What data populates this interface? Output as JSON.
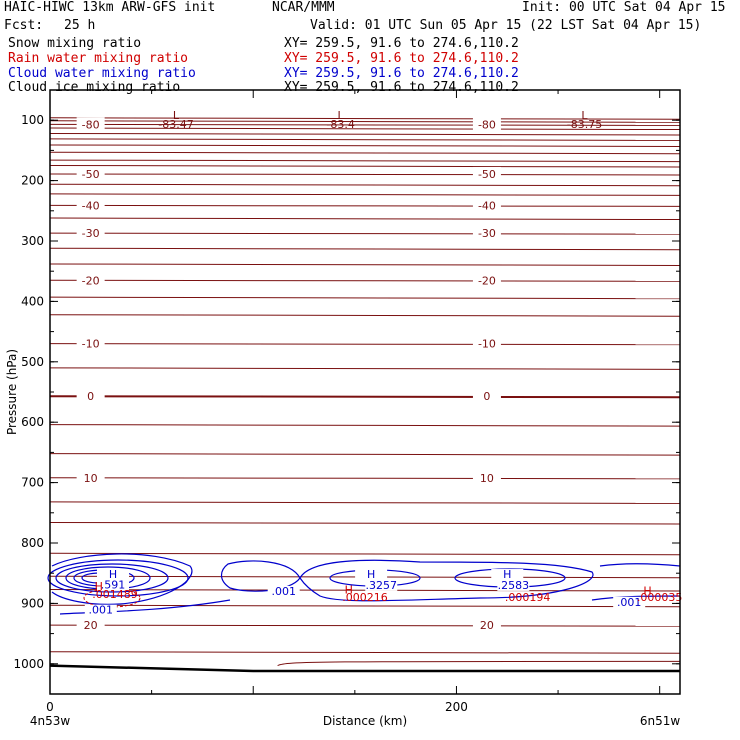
{
  "header": {
    "model": "HAIC-HIWC 13km ARW-GFS init",
    "org": "NCAR/MMM",
    "init": "Init: 00 UTC Sat 04 Apr 15",
    "fcst_label": "Fcst:",
    "fcst_value": "25 h",
    "valid": "Valid: 01 UTC Sun 05 Apr 15 (22 LST Sat 04 Apr 15)"
  },
  "fields": [
    {
      "name": "Snow mixing ratio",
      "xy": "XY= 259.5, 91.6 to 274.6,110.2",
      "color": "#000000"
    },
    {
      "name": "Rain water mixing ratio",
      "xy": "XY= 259.5, 91.6 to 274.6,110.2",
      "color": "#d00000"
    },
    {
      "name": "Cloud water mixing ratio",
      "xy": "XY= 259.5, 91.6 to 274.6,110.2",
      "color": "#0000cc"
    },
    {
      "name": "Cloud ice mixing ratio",
      "xy": "XY= 259.5, 91.6 to 274.6,110.2",
      "color": "#000000"
    }
  ],
  "chart_data": {
    "type": "contour",
    "ylabel": "Pressure (hPa)",
    "xlabel": "Distance (km)",
    "x_start_label": "4n53w",
    "x_end_label": "6n51w",
    "xlim": [
      0,
      310
    ],
    "ylim": [
      1050,
      50
    ],
    "y_ticks": [
      100,
      200,
      300,
      400,
      500,
      600,
      700,
      800,
      900,
      1000
    ],
    "x_ticks": [
      0,
      200
    ],
    "temperature_contours": [
      {
        "label": "-80",
        "pressure": 107
      },
      {
        "label": "-50",
        "pressure": 189
      },
      {
        "label": "-40",
        "pressure": 241
      },
      {
        "label": "-30",
        "pressure": 287
      },
      {
        "label": "-20",
        "pressure": 365
      },
      {
        "label": "-10",
        "pressure": 470
      },
      {
        "label": "0",
        "pressure": 557
      },
      {
        "label": "10",
        "pressure": 692
      },
      {
        "label": "20",
        "pressure": 936
      }
    ],
    "temperature_lows": [
      {
        "label": "L",
        "value": "-83.47",
        "x": 62
      },
      {
        "label": "L",
        "value": "-83.4",
        "x": 143
      },
      {
        "label": "L",
        "value": "-83.75",
        "x": 263
      }
    ],
    "cloud_water_labels": [
      {
        "text": "H",
        "x": 31,
        "pressure": 858
      },
      {
        "text": ".591",
        "x": 31,
        "pressure": 875
      },
      {
        "text": ".001",
        "x": 25,
        "pressure": 917
      },
      {
        "text": ".001",
        "x": 115,
        "pressure": 886
      },
      {
        "text": "H",
        "x": 158,
        "pressure": 858
      },
      {
        "text": ".3257",
        "x": 163,
        "pressure": 876
      },
      {
        "text": "H",
        "x": 225,
        "pressure": 858
      },
      {
        "text": ".2583",
        "x": 228,
        "pressure": 876
      },
      {
        "text": ".001",
        "x": 285,
        "pressure": 904
      }
    ],
    "rain_labels": [
      {
        "text": "H",
        "x": 24,
        "pressure": 878
      },
      {
        "text": ".001489",
        "x": 32,
        "pressure": 891
      },
      {
        "text": "H",
        "x": 147,
        "pressure": 884
      },
      {
        "text": ".000216",
        "x": 155,
        "pressure": 896
      },
      {
        "text": ".000194",
        "x": 235,
        "pressure": 896
      },
      {
        "text": "H",
        "x": 294,
        "pressure": 885
      },
      {
        "text": ".000035",
        "x": 300,
        "pressure": 896
      }
    ]
  }
}
